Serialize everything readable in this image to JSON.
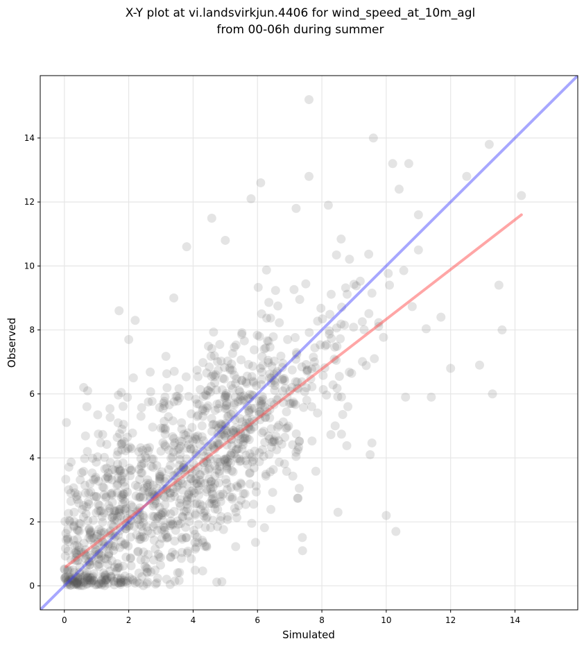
{
  "chart_data": {
    "type": "scatter",
    "title_lines": [
      "X-Y plot at vi.landsvirkjun.4406 for wind_speed_at_10m_agl",
      "from 00-06h during summer"
    ],
    "xlabel": "Simulated",
    "ylabel": "Observed",
    "xlim": [
      -0.75,
      15.95
    ],
    "ylim": [
      -0.75,
      15.95
    ],
    "xticks": [
      0,
      2,
      4,
      6,
      8,
      10,
      12,
      14
    ],
    "yticks": [
      0,
      2,
      4,
      6,
      8,
      10,
      12,
      14
    ],
    "grid": true,
    "point_color": "#555555",
    "point_opacity": 0.16,
    "reference_line": {
      "x": [
        -0.75,
        15.95
      ],
      "y": [
        -0.75,
        15.95
      ],
      "color": "#3b3bff"
    },
    "fit_line": {
      "x": [
        0.05,
        14.2
      ],
      "y": [
        0.6,
        11.6
      ],
      "color": "#ff4d4d"
    },
    "points_seed": 4406,
    "points_count": 1300,
    "highlight_points": [
      [
        7.6,
        15.2
      ],
      [
        9.6,
        14.0
      ],
      [
        13.2,
        13.8
      ],
      [
        10.2,
        13.2
      ],
      [
        10.7,
        13.2
      ],
      [
        12.5,
        12.8
      ],
      [
        7.6,
        12.8
      ],
      [
        6.1,
        12.6
      ],
      [
        5.8,
        12.1
      ],
      [
        14.2,
        12.2
      ],
      [
        10.4,
        12.4
      ],
      [
        8.2,
        11.9
      ],
      [
        7.2,
        11.8
      ],
      [
        3.8,
        10.6
      ],
      [
        5.0,
        10.8
      ],
      [
        12.0,
        6.8
      ],
      [
        12.9,
        6.9
      ],
      [
        13.3,
        6.0
      ],
      [
        13.6,
        8.0
      ],
      [
        13.5,
        9.4
      ],
      [
        11.7,
        8.4
      ],
      [
        10.0,
        2.2
      ],
      [
        10.3,
        1.7
      ],
      [
        8.5,
        2.3
      ],
      [
        7.4,
        1.1
      ],
      [
        0.6,
        6.2
      ],
      [
        0.7,
        5.6
      ],
      [
        1.7,
        8.6
      ],
      [
        2.2,
        8.3
      ],
      [
        3.4,
        9.0
      ],
      [
        2.0,
        7.7
      ],
      [
        0.1,
        1.5
      ],
      [
        0.2,
        2.9
      ],
      [
        0.1,
        0.5
      ],
      [
        11.0,
        10.5
      ],
      [
        11.0,
        11.6
      ],
      [
        10.1,
        9.4
      ],
      [
        11.4,
        5.9
      ],
      [
        10.6,
        5.9
      ],
      [
        9.5,
        4.1
      ]
    ]
  }
}
